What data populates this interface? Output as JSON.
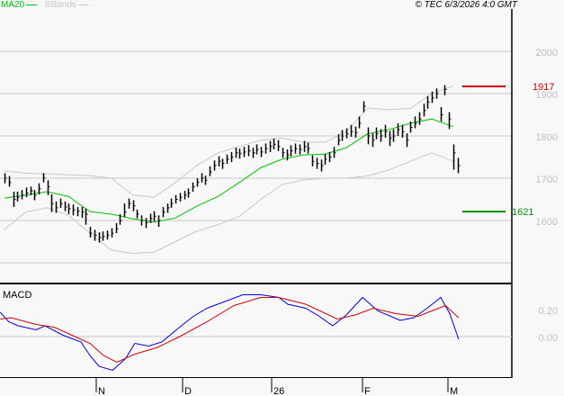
{
  "header": {
    "legend": [
      {
        "label": "MA20",
        "color": "#00c000"
      },
      {
        "label": "BBands",
        "color": "#c8c8c8"
      }
    ],
    "copyright": "© TEC 6/3/2026 4:0 GMT"
  },
  "chart_data": [
    {
      "type": "ohlc",
      "panel": "price",
      "yticks": [
        "2000",
        "1900",
        "1800",
        "1700",
        "1600"
      ],
      "ylim": [
        1450,
        2050
      ],
      "grid": true,
      "xticks": [
        "N",
        "D",
        "26",
        "F",
        "M"
      ],
      "bars_hlc": [
        [
          1712,
          1688,
          1700
        ],
        [
          1705,
          1680,
          1690
        ],
        [
          1668,
          1632,
          1650
        ],
        [
          1668,
          1645,
          1655
        ],
        [
          1672,
          1650,
          1660
        ],
        [
          1678,
          1655,
          1665
        ],
        [
          1680,
          1660,
          1670
        ],
        [
          1672,
          1648,
          1660
        ],
        [
          1688,
          1662,
          1675
        ],
        [
          1712,
          1690,
          1700
        ],
        [
          1695,
          1660,
          1680
        ],
        [
          1662,
          1620,
          1640
        ],
        [
          1645,
          1618,
          1630
        ],
        [
          1652,
          1630,
          1640
        ],
        [
          1645,
          1622,
          1632
        ],
        [
          1640,
          1615,
          1628
        ],
        [
          1638,
          1612,
          1625
        ],
        [
          1632,
          1610,
          1622
        ],
        [
          1632,
          1606,
          1620
        ],
        [
          1628,
          1590,
          1615
        ],
        [
          1585,
          1560,
          1570
        ],
        [
          1578,
          1552,
          1565
        ],
        [
          1572,
          1548,
          1560
        ],
        [
          1574,
          1552,
          1562
        ],
        [
          1576,
          1555,
          1565
        ],
        [
          1582,
          1560,
          1570
        ],
        [
          1594,
          1570,
          1580
        ],
        [
          1615,
          1590,
          1600
        ],
        [
          1640,
          1608,
          1620
        ],
        [
          1652,
          1628,
          1640
        ],
        [
          1648,
          1622,
          1635
        ],
        [
          1626,
          1605,
          1615
        ],
        [
          1612,
          1588,
          1600
        ],
        [
          1606,
          1582,
          1595
        ],
        [
          1616,
          1594,
          1605
        ],
        [
          1622,
          1598,
          1610
        ],
        [
          1612,
          1585,
          1600
        ],
        [
          1632,
          1608,
          1620
        ],
        [
          1640,
          1618,
          1630
        ],
        [
          1652,
          1630,
          1640
        ],
        [
          1660,
          1640,
          1650
        ],
        [
          1665,
          1645,
          1655
        ],
        [
          1670,
          1650,
          1660
        ],
        [
          1676,
          1654,
          1665
        ],
        [
          1690,
          1668,
          1680
        ],
        [
          1700,
          1680,
          1690
        ],
        [
          1712,
          1690,
          1700
        ],
        [
          1706,
          1684,
          1695
        ],
        [
          1728,
          1705,
          1715
        ],
        [
          1742,
          1718,
          1730
        ],
        [
          1752,
          1728,
          1740
        ],
        [
          1746,
          1722,
          1735
        ],
        [
          1756,
          1734,
          1745
        ],
        [
          1762,
          1738,
          1750
        ],
        [
          1772,
          1748,
          1760
        ],
        [
          1770,
          1746,
          1758
        ],
        [
          1774,
          1750,
          1762
        ],
        [
          1778,
          1752,
          1765
        ],
        [
          1772,
          1748,
          1760
        ],
        [
          1780,
          1756,
          1768
        ],
        [
          1774,
          1750,
          1762
        ],
        [
          1782,
          1758,
          1770
        ],
        [
          1788,
          1762,
          1775
        ],
        [
          1794,
          1768,
          1780
        ],
        [
          1790,
          1764,
          1775
        ],
        [
          1772,
          1748,
          1760
        ],
        [
          1768,
          1742,
          1755
        ],
        [
          1778,
          1752,
          1765
        ],
        [
          1782,
          1758,
          1770
        ],
        [
          1780,
          1756,
          1768
        ],
        [
          1788,
          1762,
          1775
        ],
        [
          1784,
          1758,
          1770
        ],
        [
          1754,
          1728,
          1740
        ],
        [
          1748,
          1722,
          1735
        ],
        [
          1744,
          1716,
          1730
        ],
        [
          1758,
          1732,
          1745
        ],
        [
          1762,
          1738,
          1750
        ],
        [
          1774,
          1748,
          1760
        ],
        [
          1804,
          1778,
          1790
        ],
        [
          1814,
          1788,
          1800
        ],
        [
          1818,
          1794,
          1805
        ],
        [
          1826,
          1798,
          1810
        ],
        [
          1822,
          1796,
          1808
        ],
        [
          1846,
          1818,
          1830
        ],
        [
          1882,
          1856,
          1870
        ],
        [
          1820,
          1780,
          1800
        ],
        [
          1806,
          1774,
          1790
        ],
        [
          1820,
          1792,
          1805
        ],
        [
          1816,
          1786,
          1800
        ],
        [
          1826,
          1796,
          1810
        ],
        [
          1812,
          1776,
          1795
        ],
        [
          1816,
          1786,
          1800
        ],
        [
          1830,
          1800,
          1815
        ],
        [
          1826,
          1796,
          1810
        ],
        [
          1806,
          1774,
          1790
        ],
        [
          1834,
          1808,
          1820
        ],
        [
          1846,
          1818,
          1830
        ],
        [
          1856,
          1826,
          1840
        ],
        [
          1876,
          1846,
          1860
        ],
        [
          1894,
          1864,
          1880
        ],
        [
          1905,
          1878,
          1890
        ],
        [
          1912,
          1888,
          1900
        ],
        [
          1868,
          1834,
          1850
        ],
        [
          1920,
          1896,
          1910
        ],
        [
          1856,
          1816,
          1840
        ],
        [
          1780,
          1720,
          1760
        ],
        [
          1748,
          1712,
          1730
        ]
      ],
      "ma20": [
        1653,
        1660,
        1668,
        1657,
        1621,
        1615,
        1604,
        1596,
        1606,
        1634,
        1657,
        1690,
        1725,
        1745,
        1755,
        1757,
        1772,
        1805,
        1815,
        1830,
        1840,
        1822
      ],
      "bb_upper": [
        1717,
        1712,
        1710,
        1708,
        1706,
        1700,
        1660,
        1655,
        1690,
        1730,
        1760,
        1775,
        1790,
        1795,
        1785,
        1785,
        1810,
        1866,
        1862,
        1865,
        1900,
        1918
      ],
      "bb_lower": [
        1579,
        1620,
        1630,
        1612,
        1570,
        1530,
        1522,
        1525,
        1550,
        1575,
        1590,
        1610,
        1650,
        1685,
        1696,
        1700,
        1700,
        1705,
        1720,
        1740,
        1760,
        1740
      ],
      "levels": [
        {
          "label": "1917",
          "value": 1917,
          "color": "#d00000"
        },
        {
          "label": "1621",
          "value": 1621,
          "color": "#009000"
        }
      ]
    },
    {
      "type": "line",
      "panel": "macd",
      "title": "MACD",
      "yticks": [
        "0.20",
        "0.00"
      ],
      "ylim": [
        -0.3,
        0.4
      ],
      "series": [
        {
          "color": "#0000e0",
          "points": [
            [
              -1,
              0.18
            ],
            [
              1,
              0.11
            ],
            [
              3.2,
              0.08
            ],
            [
              7.4,
              0.05
            ],
            [
              9.5,
              0.08
            ],
            [
              13.7,
              0.01
            ],
            [
              17.9,
              -0.04
            ],
            [
              20,
              -0.14
            ],
            [
              22.1,
              -0.22
            ],
            [
              25.3,
              -0.25
            ],
            [
              28.4,
              -0.16
            ],
            [
              30.5,
              -0.05
            ],
            [
              33.7,
              -0.07
            ],
            [
              36.8,
              -0.04
            ],
            [
              41,
              0.07
            ],
            [
              44.2,
              0.15
            ],
            [
              47.4,
              0.21
            ],
            [
              51.6,
              0.26
            ],
            [
              55.8,
              0.31
            ],
            [
              60,
              0.31
            ],
            [
              64.2,
              0.29
            ],
            [
              66.3,
              0.24
            ],
            [
              70.5,
              0.21
            ],
            [
              73.7,
              0.15
            ],
            [
              76.8,
              0.08
            ],
            [
              80,
              0.16
            ],
            [
              83.8,
              0.29
            ],
            [
              87.4,
              0.19
            ],
            [
              92.6,
              0.12
            ],
            [
              95.8,
              0.14
            ],
            [
              98.9,
              0.21
            ],
            [
              102.1,
              0.29
            ],
            [
              104.2,
              0.17
            ],
            [
              106.3,
              -0.02
            ]
          ]
        },
        {
          "color": "#d00000",
          "points": [
            [
              -1,
              0.13
            ],
            [
              1.5,
              0.14
            ],
            [
              7.4,
              0.09
            ],
            [
              11.6,
              0.07
            ],
            [
              15.8,
              0.01
            ],
            [
              20,
              -0.05
            ],
            [
              23.2,
              -0.14
            ],
            [
              26.3,
              -0.19
            ],
            [
              30.5,
              -0.13
            ],
            [
              35.8,
              -0.08
            ],
            [
              41,
              0.0
            ],
            [
              47.4,
              0.11
            ],
            [
              53.7,
              0.23
            ],
            [
              60,
              0.29
            ],
            [
              64.2,
              0.29
            ],
            [
              70.5,
              0.24
            ],
            [
              77.9,
              0.13
            ],
            [
              82.1,
              0.16
            ],
            [
              86.3,
              0.21
            ],
            [
              91.6,
              0.17
            ],
            [
              96.8,
              0.15
            ],
            [
              103.2,
              0.23
            ],
            [
              106.3,
              0.14
            ]
          ]
        }
      ]
    }
  ]
}
